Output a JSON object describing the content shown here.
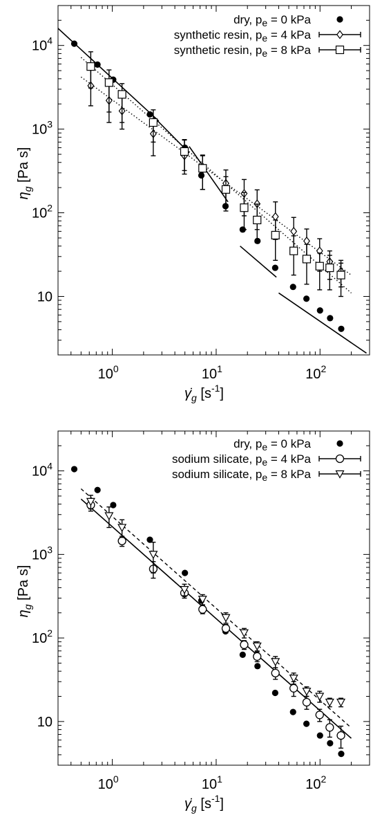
{
  "chart_data": [
    {
      "type": "scatter",
      "scale": "log-log",
      "xlabel": {
        "symbol": "γ̇",
        "sub": "g",
        "unit": "[s",
        "unit_exp": "-1",
        "close": "]"
      },
      "ylabel": {
        "symbol": "η",
        "sub": "g",
        "unit": "[Pa s]"
      },
      "xlim": [
        0.3,
        300
      ],
      "ylim": [
        2,
        30000
      ],
      "x_ticks": [
        {
          "base": "10",
          "exp": "0",
          "value": 1
        },
        {
          "base": "10",
          "exp": "1",
          "value": 10
        },
        {
          "base": "10",
          "exp": "2",
          "value": 100
        }
      ],
      "y_ticks": [
        {
          "base": "10",
          "exp": "",
          "value": 10
        },
        {
          "base": "10",
          "exp": "2",
          "value": 100
        },
        {
          "base": "10",
          "exp": "3",
          "value": 1000
        },
        {
          "base": "10",
          "exp": "4",
          "value": 10000
        }
      ],
      "legend_position": "top-right",
      "series": [
        {
          "label": "dry, p",
          "label_sub": "e",
          "label_tail": " = 0 kPa",
          "marker": "filled-circle",
          "x": [
            0.43,
            0.72,
            1.02,
            2.3,
            5.0,
            7.2,
            12.3,
            18.0,
            25.0,
            37.0,
            55.0,
            74.0,
            100.0,
            125.0,
            160.0
          ],
          "y": [
            10500,
            5900,
            3900,
            1500,
            600,
            280,
            120,
            63,
            46,
            22,
            13,
            9.4,
            6.8,
            5.5,
            4.1
          ]
        },
        {
          "label": "synthetic resin, p",
          "label_sub": "e",
          "label_tail": " = 4 kPa",
          "marker": "open-diamond",
          "x": [
            0.62,
            0.93,
            1.24,
            2.48,
            4.95,
            7.4,
            12.4,
            18.6,
            24.8,
            37.2,
            55.8,
            74.4,
            99.2,
            124.0,
            159.0
          ],
          "y": [
            3300,
            2200,
            1650,
            880,
            480,
            330,
            225,
            170,
            128,
            90,
            60,
            46,
            35,
            26,
            20
          ],
          "err_low": [
            1400,
            1000,
            650,
            400,
            190,
            140,
            100,
            78,
            65,
            42,
            28,
            20,
            15,
            10,
            7
          ],
          "err_high": [
            2200,
            1600,
            1100,
            420,
            270,
            150,
            100,
            80,
            60,
            45,
            28,
            18,
            14,
            9,
            7
          ]
        },
        {
          "label": "synthetic resin, p",
          "label_sub": "e",
          "label_tail": " = 8 kPa",
          "marker": "open-square",
          "x": [
            0.62,
            0.93,
            1.24,
            2.48,
            4.95,
            7.4,
            12.4,
            18.6,
            24.8,
            37.2,
            55.8,
            74.4,
            99.2,
            124.0,
            159.0
          ],
          "y": [
            5600,
            3600,
            2600,
            1200,
            540,
            340,
            190,
            115,
            82,
            54,
            35,
            28,
            23,
            22,
            18
          ],
          "err_low": [
            2500,
            2000,
            1400,
            500,
            220,
            150,
            85,
            52,
            38,
            27,
            17,
            14,
            11,
            10,
            8
          ],
          "err_high": [
            2800,
            1500,
            900,
            500,
            200,
            150,
            80,
            60,
            45,
            28,
            18,
            14,
            10,
            9,
            7
          ]
        }
      ],
      "fit_lines": [
        {
          "style": "solid",
          "x": [
            0.3,
            2.8
          ],
          "y": [
            16000,
            1250
          ]
        },
        {
          "style": "solid",
          "x": [
            2.5,
            5.5
          ],
          "y": [
            1400,
            520
          ]
        },
        {
          "style": "solid",
          "x": [
            5.5,
            13
          ],
          "y": [
            620,
            135
          ]
        },
        {
          "style": "solid",
          "x": [
            17,
            38
          ],
          "y": [
            40,
            17
          ]
        },
        {
          "style": "solid",
          "x": [
            40,
            280
          ],
          "y": [
            11,
            2.1
          ]
        },
        {
          "style": "dotted",
          "x": [
            0.5,
            200
          ],
          "y": [
            4200,
            18
          ]
        },
        {
          "style": "dotted",
          "x": [
            0.5,
            200
          ],
          "y": [
            7200,
            11
          ]
        }
      ]
    },
    {
      "type": "scatter",
      "scale": "log-log",
      "xlabel": {
        "symbol": "γ̇",
        "sub": "g",
        "unit": "[s",
        "unit_exp": "-1",
        "close": "]"
      },
      "ylabel": {
        "symbol": "η",
        "sub": "g",
        "unit": "[Pa s]"
      },
      "xlim": [
        0.3,
        300
      ],
      "ylim": [
        3,
        30000
      ],
      "x_ticks": [
        {
          "base": "10",
          "exp": "0",
          "value": 1
        },
        {
          "base": "10",
          "exp": "1",
          "value": 10
        },
        {
          "base": "10",
          "exp": "2",
          "value": 100
        }
      ],
      "y_ticks": [
        {
          "base": "10",
          "exp": "",
          "value": 10
        },
        {
          "base": "10",
          "exp": "2",
          "value": 100
        },
        {
          "base": "10",
          "exp": "3",
          "value": 1000
        },
        {
          "base": "10",
          "exp": "4",
          "value": 10000
        }
      ],
      "legend_position": "top-right",
      "series": [
        {
          "label": "dry, p",
          "label_sub": "e",
          "label_tail": " = 0 kPa",
          "marker": "filled-circle",
          "x": [
            0.43,
            0.72,
            1.02,
            2.3,
            5.0,
            7.2,
            12.3,
            18.0,
            25.0,
            37.0,
            55.0,
            74.0,
            100.0,
            125.0,
            160.0
          ],
          "y": [
            10500,
            5900,
            3900,
            1500,
            600,
            280,
            120,
            63,
            46,
            22,
            13,
            9.4,
            6.8,
            5.5,
            4.1
          ]
        },
        {
          "label": "sodium silicate, p",
          "label_sub": "e",
          "label_tail": " = 4 kPa",
          "marker": "open-circle",
          "x": [
            0.62,
            1.24,
            2.48,
            4.95,
            7.4,
            12.4,
            18.6,
            24.8,
            37.2,
            55.8,
            74.4,
            99.2,
            124.0,
            159.0
          ],
          "y": [
            3900,
            1450,
            670,
            345,
            220,
            130,
            83,
            60,
            38,
            25,
            17,
            12,
            8.5,
            6.8
          ],
          "err_low": [
            600,
            200,
            150,
            45,
            25,
            15,
            10,
            8,
            6,
            5,
            3,
            2,
            2,
            2
          ],
          "err_high": [
            600,
            200,
            150,
            45,
            25,
            15,
            10,
            8,
            6,
            5,
            3,
            2,
            2,
            2
          ]
        },
        {
          "label": "sodium silicate, p",
          "label_sub": "e",
          "label_tail": " = 8 kPa",
          "marker": "open-triangle-down",
          "x": [
            0.62,
            0.93,
            1.24,
            2.48,
            4.95,
            7.4,
            12.4,
            18.6,
            24.8,
            37.2,
            55.8,
            74.4,
            99.2,
            124.0,
            159.0
          ],
          "y": [
            4300,
            2900,
            2100,
            1000,
            380,
            290,
            175,
            115,
            80,
            52,
            33,
            23,
            20,
            17,
            17
          ],
          "err_low": [
            800,
            800,
            500,
            400,
            60,
            40,
            25,
            15,
            10,
            8,
            5,
            3,
            3,
            2,
            2
          ],
          "err_high": [
            800,
            800,
            500,
            400,
            60,
            40,
            25,
            15,
            10,
            8,
            5,
            3,
            3,
            2,
            2
          ]
        }
      ],
      "fit_lines": [
        {
          "style": "solid",
          "x": [
            0.5,
            200
          ],
          "y": [
            4600,
            6.3
          ]
        },
        {
          "style": "dashed",
          "x": [
            0.5,
            200
          ],
          "y": [
            6100,
            8.4
          ]
        }
      ]
    }
  ]
}
